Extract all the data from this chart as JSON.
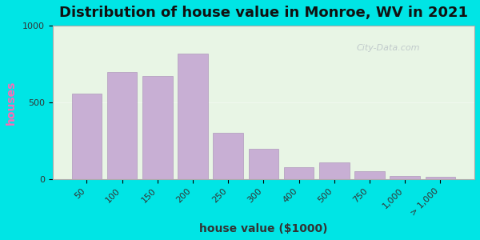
{
  "title": "Distribution of house value in Monroe, WV in 2021",
  "xlabel": "house value ($1000)",
  "ylabel": "houses",
  "bar_labels": [
    "50",
    "100",
    "150",
    "200",
    "250",
    "300",
    "400",
    "500",
    "750",
    "1,000",
    "> 1,000"
  ],
  "bar_values": [
    560,
    700,
    670,
    820,
    300,
    200,
    80,
    110,
    50,
    20,
    15
  ],
  "bar_color": "#c8afd4",
  "bar_edge_color": "#b09abb",
  "background_outer": "#00e5e5",
  "background_inner": "#e8f5e5",
  "title_fontsize": 13,
  "axis_label_fontsize": 10,
  "tick_fontsize": 8,
  "ylim": [
    0,
    1000
  ],
  "yticks": [
    0,
    500,
    1000
  ],
  "watermark": "City-Data.com"
}
